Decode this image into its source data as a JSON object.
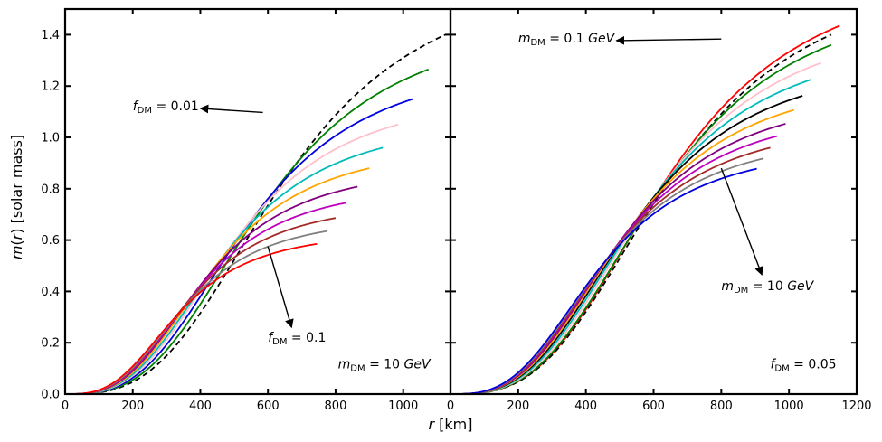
{
  "figure": {
    "ylabel": "m(r)  [solar mass]",
    "xlabel": "r  [km]"
  },
  "chart_data": [
    {
      "type": "line",
      "panel": "left",
      "xlim": [
        0,
        1140
      ],
      "ylim": [
        0,
        1.5
      ],
      "x_ticks": [
        0,
        200,
        400,
        600,
        800,
        1000
      ],
      "y_ticks": [
        0.0,
        0.2,
        0.4,
        0.6,
        0.8,
        1.0,
        1.2,
        1.4
      ],
      "grid": false,
      "series": [
        {
          "color": "#000000",
          "dashed": true,
          "R": 1125,
          "M": 1.4,
          "w": 650
        },
        {
          "color": "#008000",
          "dashed": false,
          "R": 1075,
          "M": 1.265,
          "w": 590
        },
        {
          "color": "#0000e0",
          "dashed": false,
          "R": 1030,
          "M": 1.15,
          "w": 540
        },
        {
          "color": "#ffc0cb",
          "dashed": false,
          "R": 985,
          "M": 1.05,
          "w": 500
        },
        {
          "color": "#00bbbb",
          "dashed": false,
          "R": 940,
          "M": 0.96,
          "w": 470
        },
        {
          "color": "#ffa500",
          "dashed": false,
          "R": 900,
          "M": 0.88,
          "w": 440
        },
        {
          "color": "#800080",
          "dashed": false,
          "R": 865,
          "M": 0.808,
          "w": 415
        },
        {
          "color": "#bf00bf",
          "dashed": false,
          "R": 830,
          "M": 0.745,
          "w": 395
        },
        {
          "color": "#a52a2a",
          "dashed": false,
          "R": 800,
          "M": 0.686,
          "w": 375
        },
        {
          "color": "#808080",
          "dashed": false,
          "R": 775,
          "M": 0.635,
          "w": 360
        },
        {
          "color": "#ff0000",
          "dashed": false,
          "R": 745,
          "M": 0.585,
          "w": 340
        }
      ],
      "annotations": [
        {
          "sym": "f",
          "sub": "DM",
          "rest": " = 0.01",
          "x": 200,
          "y": 1.105,
          "arrow_from": [
            585,
            1.097
          ],
          "arrow_to": [
            400,
            1.113
          ]
        },
        {
          "sym": "f",
          "sub": "DM",
          "rest": " = 0.1",
          "x": 600,
          "y": 0.205,
          "arrow_from": [
            600,
            0.575
          ],
          "arrow_to": [
            670,
            0.26
          ]
        },
        {
          "sym": "m",
          "sub": "DM",
          "rest": " = 10 GeV",
          "x": 1080,
          "y": 0.1,
          "anchor": "end"
        }
      ]
    },
    {
      "type": "line",
      "panel": "right",
      "xlim": [
        0,
        1200
      ],
      "ylim": [
        0,
        1.5
      ],
      "x_ticks": [
        0,
        200,
        400,
        600,
        800,
        1000,
        1200
      ],
      "y_ticks": [
        0.0,
        0.2,
        0.4,
        0.6,
        0.8,
        1.0,
        1.2,
        1.4
      ],
      "grid": false,
      "series": [
        {
          "color": "#ff0000",
          "dashed": false,
          "R": 1150,
          "M": 1.435,
          "w": 640
        },
        {
          "color": "#000000",
          "dashed": true,
          "R": 1125,
          "M": 1.4,
          "w": 645
        },
        {
          "color": "#008000",
          "dashed": false,
          "R": 1125,
          "M": 1.36,
          "w": 620
        },
        {
          "color": "#ffc0cb",
          "dashed": false,
          "R": 1095,
          "M": 1.29,
          "w": 590
        },
        {
          "color": "#00bbbb",
          "dashed": false,
          "R": 1065,
          "M": 1.225,
          "w": 565
        },
        {
          "color": "#000000",
          "dashed": false,
          "R": 1040,
          "M": 1.162,
          "w": 540
        },
        {
          "color": "#ffa500",
          "dashed": false,
          "R": 1015,
          "M": 1.107,
          "w": 520
        },
        {
          "color": "#800080",
          "dashed": false,
          "R": 990,
          "M": 1.053,
          "w": 500
        },
        {
          "color": "#bf00bf",
          "dashed": false,
          "R": 965,
          "M": 1.005,
          "w": 485
        },
        {
          "color": "#a52a2a",
          "dashed": false,
          "R": 945,
          "M": 0.96,
          "w": 470
        },
        {
          "color": "#808080",
          "dashed": false,
          "R": 925,
          "M": 0.918,
          "w": 455
        },
        {
          "color": "#0000e0",
          "dashed": false,
          "R": 905,
          "M": 0.878,
          "w": 440
        }
      ],
      "annotations": [
        {
          "sym": "m",
          "sub": "DM",
          "rest": " = 0.1 GeV",
          "x": 200,
          "y": 1.37,
          "arrow_from": [
            800,
            1.383
          ],
          "arrow_to": [
            490,
            1.377
          ]
        },
        {
          "sym": "m",
          "sub": "DM",
          "rest": " = 10 GeV",
          "x": 800,
          "y": 0.405,
          "arrow_from": [
            800,
            0.88
          ],
          "arrow_to": [
            920,
            0.465
          ]
        },
        {
          "sym": "f",
          "sub": "DM",
          "rest": " = 0.05",
          "x": 1140,
          "y": 0.1,
          "anchor": "end"
        }
      ]
    }
  ]
}
